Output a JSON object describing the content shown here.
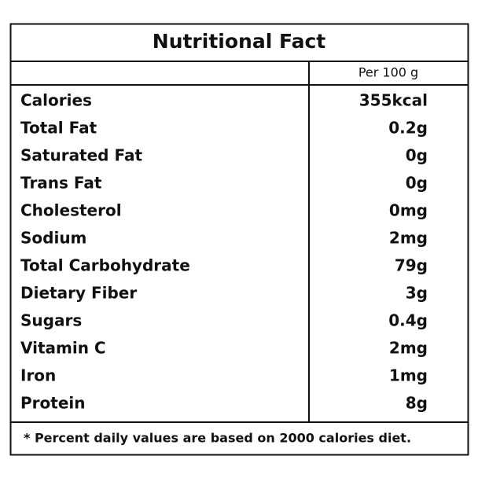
{
  "table": {
    "title": "Nutritional Fact",
    "column_header": "Per 100 g",
    "rows": [
      [
        "Calories",
        "355kcal"
      ],
      [
        "Total Fat",
        "0.2g"
      ],
      [
        "Saturated Fat",
        "0g"
      ],
      [
        "Trans Fat",
        "0g"
      ],
      [
        "Cholesterol",
        "0mg"
      ],
      [
        "Sodium",
        "2mg"
      ],
      [
        "Total Carbohydrate",
        "79g"
      ],
      [
        "Dietary Fiber",
        "3g"
      ],
      [
        "Sugars",
        "0.4g"
      ],
      [
        "Vitamin C",
        "2mg"
      ],
      [
        "Iron",
        "1mg"
      ],
      [
        "Protein",
        "8g"
      ]
    ],
    "footnote": "*  Percent daily values are based on 2000 calories diet."
  }
}
